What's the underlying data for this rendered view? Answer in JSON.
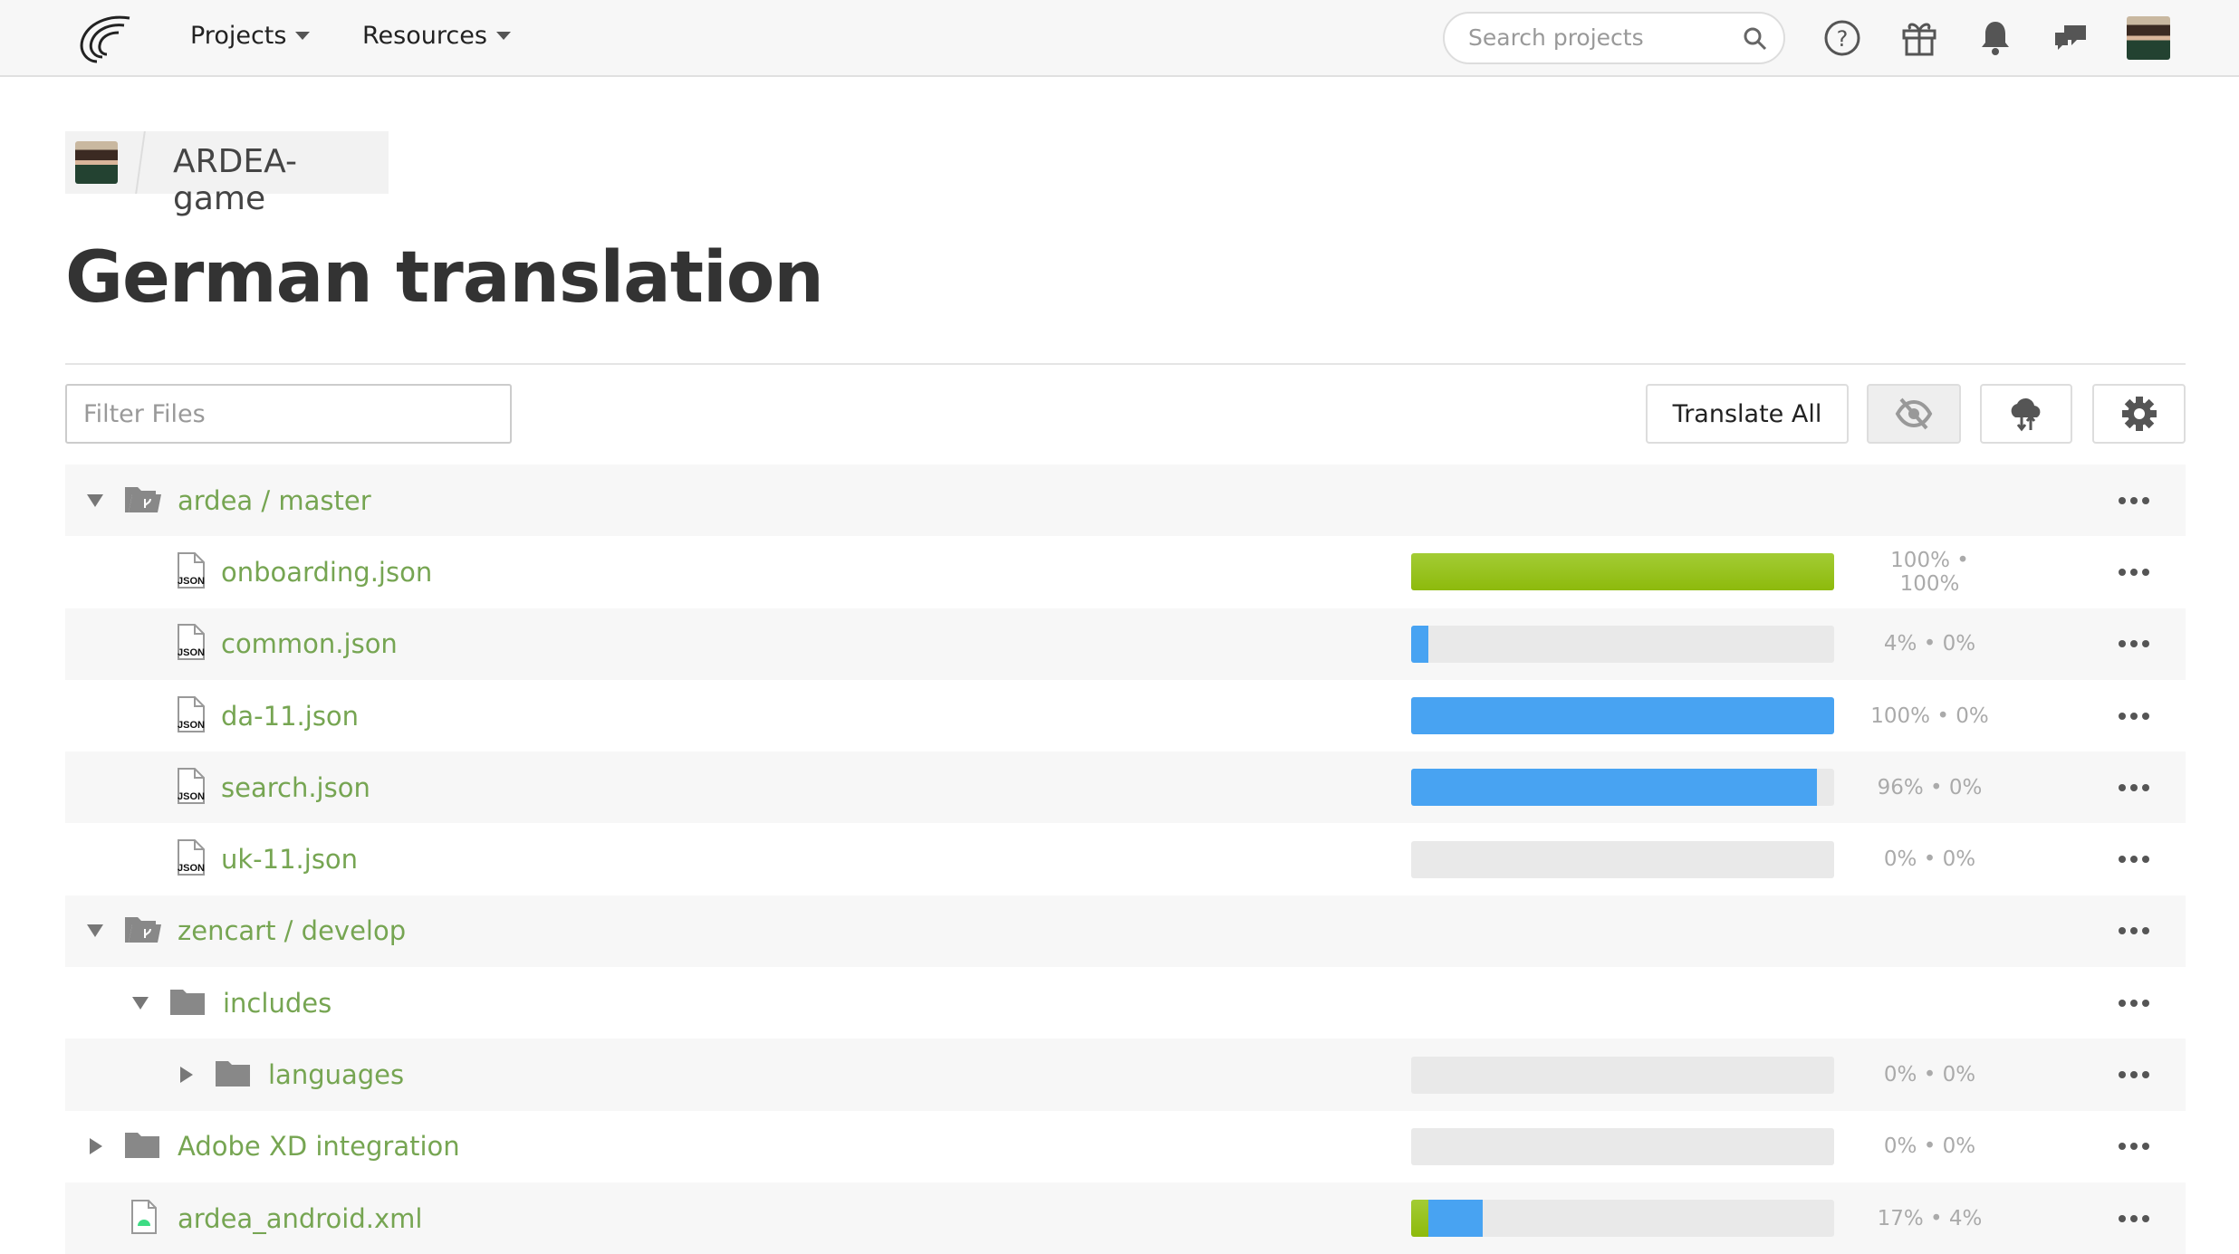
{
  "header": {
    "nav": [
      {
        "label": "Projects"
      },
      {
        "label": "Resources"
      }
    ],
    "search_placeholder": "Search projects",
    "icons": [
      "help-icon",
      "gift-icon",
      "bell-icon",
      "chat-icon"
    ]
  },
  "breadcrumb": {
    "project": "ARDEA-game"
  },
  "page_title": "German translation",
  "toolbar": {
    "filter_placeholder": "Filter Files",
    "translate_all": "Translate All",
    "hide_icon": "eye-slash-icon",
    "sync_icon": "cloud-sync-icon",
    "settings_icon": "gear-icon"
  },
  "colors": {
    "name": "#76a552",
    "approved": "#8dba0c",
    "translated": "#48a3f2"
  },
  "files": [
    {
      "name": "ardea / master",
      "type": "branch",
      "level": 0,
      "expanded": true
    },
    {
      "name": "onboarding.json",
      "type": "json",
      "level": 1,
      "translated": 100,
      "approved": 100,
      "progress_label": "100% • 100%"
    },
    {
      "name": "common.json",
      "type": "json",
      "level": 1,
      "translated": 4,
      "approved": 0,
      "progress_label": "4% • 0%"
    },
    {
      "name": "da-11.json",
      "type": "json",
      "level": 1,
      "translated": 100,
      "approved": 0,
      "progress_label": "100% • 0%"
    },
    {
      "name": "search.json",
      "type": "json",
      "level": 1,
      "translated": 96,
      "approved": 0,
      "progress_label": "96% • 0%"
    },
    {
      "name": "uk-11.json",
      "type": "json",
      "level": 1,
      "translated": 0,
      "approved": 0,
      "progress_label": "0% • 0%"
    },
    {
      "name": "zencart / develop",
      "type": "branch",
      "level": 0,
      "expanded": true
    },
    {
      "name": "includes",
      "type": "folder",
      "level": 1,
      "expanded": true
    },
    {
      "name": "languages",
      "type": "folder",
      "level": 2,
      "expanded": false,
      "translated": 0,
      "approved": 0,
      "progress_label": "0% • 0%"
    },
    {
      "name": "Adobe XD integration",
      "type": "folder",
      "level": 0,
      "expanded": false,
      "translated": 0,
      "approved": 0,
      "progress_label": "0% • 0%"
    },
    {
      "name": "ardea_android.xml",
      "type": "xml",
      "level": 0,
      "translated": 17,
      "approved": 4,
      "progress_label": "17% • 4%"
    }
  ]
}
